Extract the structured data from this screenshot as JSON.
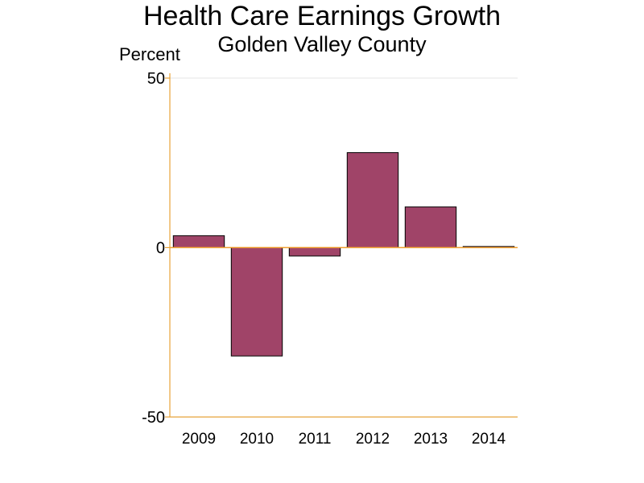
{
  "chart_data": {
    "type": "bar",
    "title": "Health Care Earnings Growth",
    "subtitle": "Golden Valley County",
    "ylabel": "Percent",
    "xlabel": "",
    "categories": [
      "2009",
      "2010",
      "2011",
      "2012",
      "2013",
      "2014"
    ],
    "values": [
      3.5,
      -32,
      -2.5,
      28,
      12,
      0.3
    ],
    "ylim": [
      -50,
      50
    ],
    "yticks": [
      "-50",
      "0",
      "50"
    ],
    "grid": true,
    "legend": "none"
  },
  "colors": {
    "bar_fill": "#a04468",
    "axis": "#e8a33a",
    "zero_line": "#f0a030",
    "grid": "#e6e6e6"
  }
}
